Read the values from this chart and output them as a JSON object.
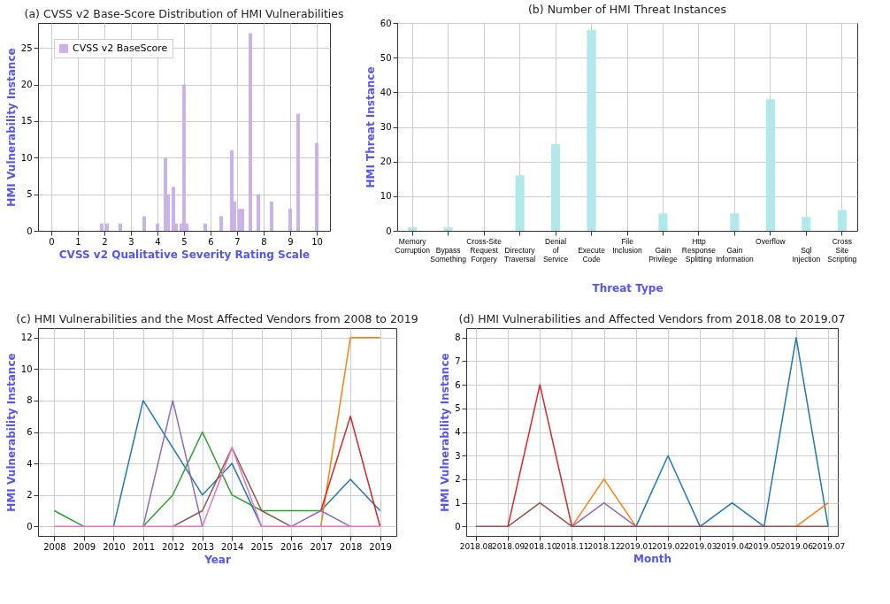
{
  "chart_data": [
    {
      "type": "bar",
      "title": "(a) CVSS v2 Base-Score Distribution of HMI Vulnerabilities",
      "xlabel": "CVSS v2 Qualitative Severity Rating Scale",
      "ylabel": "HMI Vulnerability Instance",
      "x": [
        1.9,
        2.1,
        2.6,
        3.5,
        4.0,
        4.3,
        4.4,
        4.6,
        4.7,
        4.9,
        5.0,
        5.1,
        5.8,
        6.4,
        6.8,
        6.9,
        7.1,
        7.2,
        7.5,
        7.8,
        8.3,
        9.0,
        9.3,
        10.0
      ],
      "series": [
        {
          "name": "CVSS v2 BaseScore",
          "color": "#c9b3e8",
          "values": [
            1,
            1,
            1,
            2,
            1,
            10,
            5,
            6,
            1,
            1,
            20,
            1,
            1,
            2,
            11,
            4,
            3,
            3,
            27,
            5,
            4,
            3,
            16,
            12
          ]
        }
      ],
      "xlim": [
        -0.5,
        10.5
      ],
      "xticks": [
        0,
        1,
        2,
        3,
        4,
        5,
        6,
        7,
        8,
        9,
        10
      ],
      "ylim": [
        0,
        28.4
      ],
      "yticks": [
        0,
        5,
        10,
        15,
        20,
        25
      ],
      "grid": true,
      "legend": "top left"
    },
    {
      "type": "bar",
      "title": "(b) Number of HMI Threat Instances",
      "xlabel": "Threat Type",
      "ylabel": "HMI Threat Instance",
      "categories": [
        "Memory Corruption",
        "Bypass Something",
        "Cross-Site Request Forgery",
        "Directory Traversal",
        "Denial of Service",
        "Execute Code",
        "File Inclusion",
        "Gain Privilege",
        "Http Response Splitting",
        "Gain Information",
        "Overflow",
        "Sql Injection",
        "Cross Site Scripting"
      ],
      "series": [
        {
          "color": "#b0e8ec",
          "values": [
            1,
            1,
            0,
            16,
            25,
            58,
            0,
            5,
            0,
            5,
            38,
            4,
            6
          ]
        }
      ],
      "ylim": [
        0,
        60
      ],
      "yticks": [
        0,
        10,
        20,
        30,
        40,
        50,
        60
      ],
      "grid": true
    },
    {
      "type": "line",
      "title": "(c) HMI Vulnerabilities and the Most Affected Vendors from 2008 to 2019",
      "xlabel": "Year",
      "ylabel": "HMI Vulnerability Instance",
      "x": [
        2008,
        2009,
        2010,
        2011,
        2012,
        2013,
        2014,
        2015,
        2016,
        2017,
        2018,
        2019
      ],
      "series": [
        {
          "color": "#1f77b4",
          "values": [
            null,
            null,
            0,
            8,
            5,
            2,
            4,
            0,
            null,
            1,
            3,
            1
          ]
        },
        {
          "color": "#ff7f0e",
          "values": [
            null,
            null,
            null,
            null,
            null,
            null,
            null,
            null,
            null,
            0,
            12,
            12
          ]
        },
        {
          "color": "#2ca02c",
          "values": [
            1,
            0,
            null,
            0,
            2,
            6,
            2,
            1,
            1,
            1,
            null,
            null
          ]
        },
        {
          "color": "#d62728",
          "values": [
            null,
            null,
            null,
            null,
            null,
            null,
            null,
            null,
            null,
            1,
            7,
            0
          ]
        },
        {
          "color": "#9467bd",
          "values": [
            null,
            null,
            null,
            0,
            8,
            0,
            null,
            null,
            0,
            1,
            0,
            null
          ]
        },
        {
          "color": "#8c564b",
          "values": [
            null,
            null,
            null,
            null,
            0,
            1,
            5,
            1,
            0,
            null,
            null,
            null
          ]
        },
        {
          "color": "#e377c2",
          "values": [
            0,
            0,
            0,
            0,
            0,
            0,
            5,
            0,
            0,
            0,
            0,
            0
          ]
        }
      ],
      "xlim": [
        2007.45,
        2019.55
      ],
      "xticks": [
        2008,
        2009,
        2010,
        2011,
        2012,
        2013,
        2014,
        2015,
        2016,
        2017,
        2018,
        2019
      ],
      "ylim": [
        -0.6,
        12.6
      ],
      "yticks": [
        0,
        2,
        4,
        6,
        8,
        10,
        12
      ],
      "grid": true
    },
    {
      "type": "line",
      "title": "(d) HMI Vulnerabilities and Affected Vendors from 2018.08 to 2019.07",
      "xlabel": "Month",
      "ylabel": "HMI Vulnerability Instance",
      "categories": [
        "2018.08",
        "2018.09",
        "2018.10",
        "2018.11",
        "2018.12",
        "2019.01",
        "2019.02",
        "2019.03",
        "2019.04",
        "2019.05",
        "2019.06",
        "2019.07"
      ],
      "series": [
        {
          "color": "#1f77b4",
          "values": [
            null,
            null,
            null,
            null,
            null,
            0,
            3,
            0,
            1,
            0,
            8,
            0
          ]
        },
        {
          "color": "#ff7f0e",
          "values": [
            null,
            null,
            null,
            0,
            2,
            0,
            null,
            null,
            null,
            null,
            0,
            1
          ]
        },
        {
          "color": "#d62728",
          "values": [
            null,
            0,
            6,
            0,
            null,
            null,
            null,
            null,
            null,
            null,
            null,
            null
          ]
        },
        {
          "color": "#9467bd",
          "values": [
            null,
            null,
            null,
            0,
            1,
            0,
            null,
            null,
            null,
            null,
            null,
            null
          ]
        },
        {
          "color": "#8c564b",
          "values": [
            0,
            0,
            1,
            0,
            0,
            0,
            0,
            0,
            0,
            0,
            0,
            0
          ]
        }
      ],
      "ylim": [
        -0.4,
        8.4
      ],
      "yticks": [
        0,
        1,
        2,
        3,
        4,
        5,
        6,
        7,
        8
      ],
      "grid": true
    }
  ]
}
